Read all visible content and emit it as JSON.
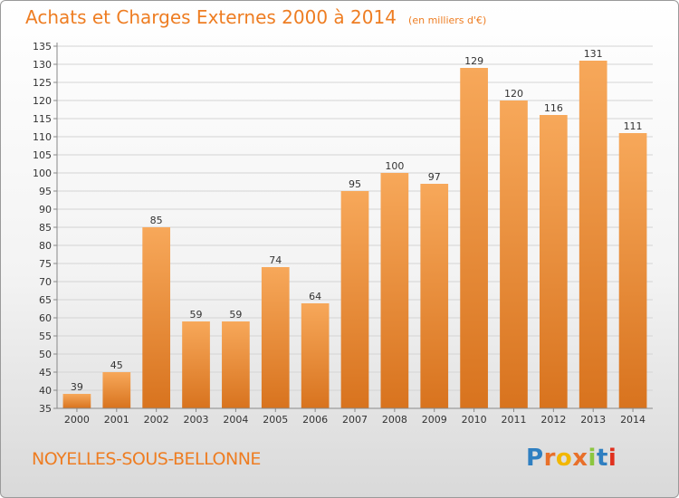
{
  "header": {
    "title": "Achats et Charges Externes 2000 à 2014",
    "unit": "(en milliers d'€)"
  },
  "footer": {
    "commune": "NOYELLES-SOUS-BELLONNE",
    "logo_text": "Proxiti",
    "logo_colors": [
      "#2f7fc1",
      "#e8702a",
      "#f2b700",
      "#e8702a",
      "#8cc63f",
      "#2f7fc1",
      "#e0301e"
    ]
  },
  "colors": {
    "bar_top": "#f7a85a",
    "bar_bottom": "#d8731e",
    "accent": "#ee7d22",
    "grid": "#d4d4d4",
    "axis_text": "#333333"
  },
  "chart_data": {
    "type": "bar",
    "title": "Achats et Charges Externes 2000 à 2014",
    "subtitle": "(en milliers d'€)",
    "xlabel": "",
    "ylabel": "",
    "categories": [
      "2000",
      "2001",
      "2002",
      "2003",
      "2004",
      "2005",
      "2006",
      "2007",
      "2008",
      "2009",
      "2010",
      "2011",
      "2012",
      "2013",
      "2014"
    ],
    "values": [
      39,
      45,
      85,
      59,
      59,
      74,
      64,
      95,
      100,
      97,
      129,
      120,
      116,
      131,
      111
    ],
    "ylim": [
      35,
      135
    ],
    "ytick_step": 5,
    "grid": true,
    "legend": "none"
  }
}
